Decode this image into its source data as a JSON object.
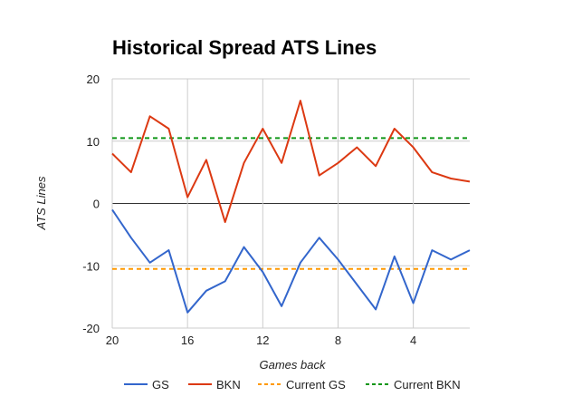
{
  "chart_data": {
    "type": "line",
    "title": "Historical Spread ATS Lines",
    "xlabel": "Games back",
    "ylabel": "ATS Lines",
    "x": [
      20,
      19,
      18,
      17,
      16,
      15,
      14,
      13,
      12,
      11,
      10,
      9,
      8,
      7,
      6,
      5,
      4,
      3,
      2,
      1
    ],
    "x_ticks": [
      20,
      16,
      12,
      8,
      4
    ],
    "x_range": [
      20,
      1
    ],
    "ylim": [
      -20,
      20
    ],
    "y_ticks": [
      20,
      10,
      0,
      -10,
      -20
    ],
    "grid": true,
    "legend_position": "bottom",
    "series": [
      {
        "name": "GS",
        "color": "#3366cc",
        "style": "solid",
        "values": [
          -1,
          -5.5,
          -9.5,
          -7.5,
          -17.5,
          -14,
          -12.5,
          -7,
          -11,
          -16.5,
          -9.5,
          -5.5,
          -9,
          -13,
          -17,
          -8.5,
          -16,
          -7.5,
          -9,
          -7.5
        ]
      },
      {
        "name": "BKN",
        "color": "#dc3912",
        "style": "solid",
        "values": [
          8,
          5,
          14,
          12,
          1,
          7,
          -3,
          6.5,
          12,
          6.5,
          16.5,
          4.5,
          6.5,
          9,
          6,
          12,
          9,
          5,
          4,
          3.5
        ]
      },
      {
        "name": "Current GS",
        "color": "#ff9900",
        "style": "dashed",
        "value": -10.5
      },
      {
        "name": "Current BKN",
        "color": "#109618",
        "style": "dashed",
        "value": 10.5
      }
    ]
  }
}
